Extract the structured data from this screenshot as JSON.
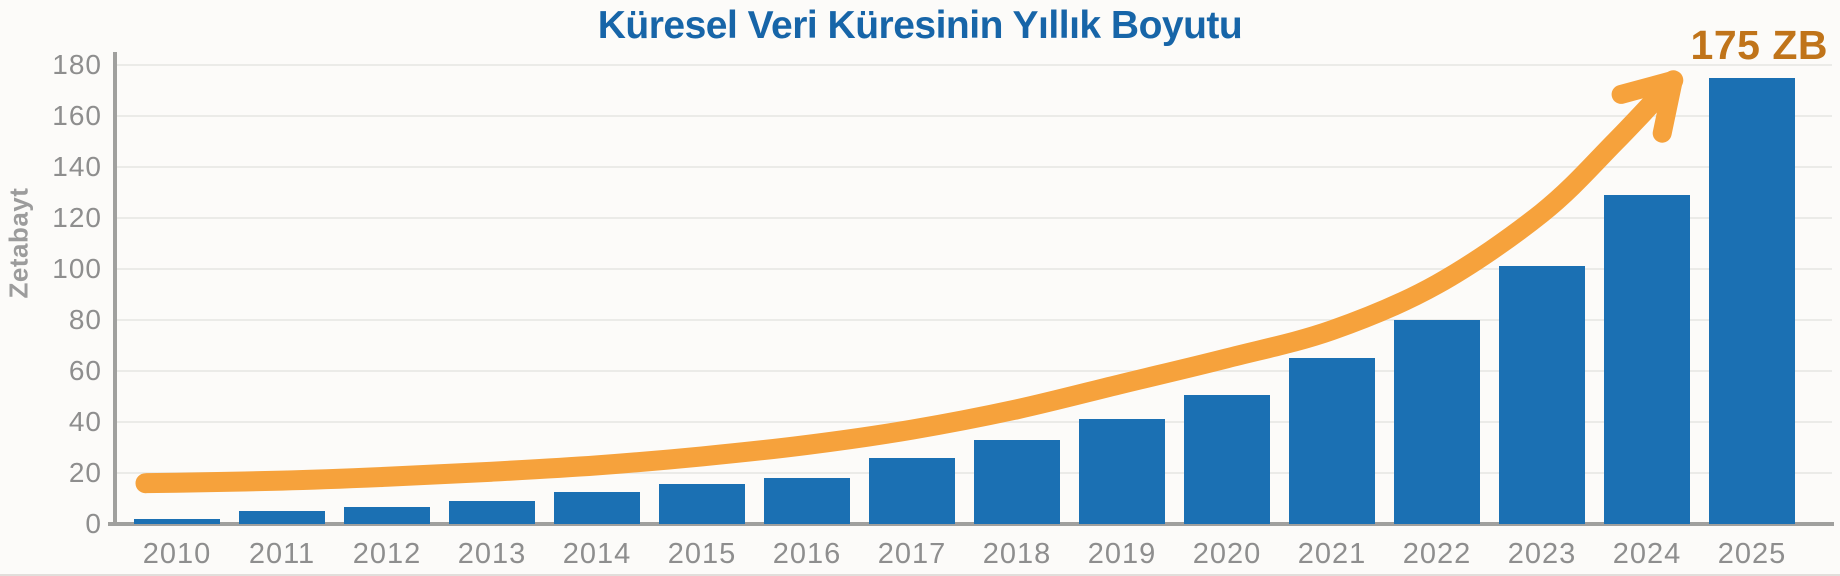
{
  "chart_data": {
    "type": "bar",
    "title": "Küresel Veri Küresinin Yıllık Boyutu",
    "ylabel": "Zetabayt",
    "xlabel": "",
    "categories": [
      "2010",
      "2011",
      "2012",
      "2013",
      "2014",
      "2015",
      "2016",
      "2017",
      "2018",
      "2019",
      "2020",
      "2021",
      "2022",
      "2023",
      "2024",
      "2025"
    ],
    "values": [
      2,
      5,
      6.5,
      9,
      12.5,
      15.5,
      18,
      26,
      33,
      41,
      50.5,
      65,
      80,
      101,
      129,
      175
    ],
    "unit": "ZB",
    "ylim": [
      0,
      180
    ],
    "yticks": [
      0,
      20,
      40,
      60,
      80,
      100,
      120,
      140,
      160,
      180
    ],
    "grid": true,
    "legend_position": "none",
    "annotation": "175 ZB",
    "trend": {
      "type": "curved-arrow",
      "x": [
        2009.7,
        2010,
        2011,
        2012,
        2013,
        2014,
        2015,
        2016,
        2017,
        2018,
        2019,
        2020,
        2021,
        2022,
        2023,
        2023.7,
        2024.25
      ],
      "values": [
        16,
        16.2,
        17,
        18.5,
        20.5,
        23,
        26.5,
        31,
        37,
        45,
        55,
        65,
        76,
        94,
        122,
        150,
        174
      ]
    },
    "colors": {
      "bar": "#1B70B3",
      "trend": "#F6A23C",
      "annotation": "#C0741A",
      "title": "#1765A8",
      "axis": "#A0A09E",
      "tick_label": "#8E8E8E",
      "grid": "#EBEBE8",
      "background": "#FCFBF9"
    }
  }
}
